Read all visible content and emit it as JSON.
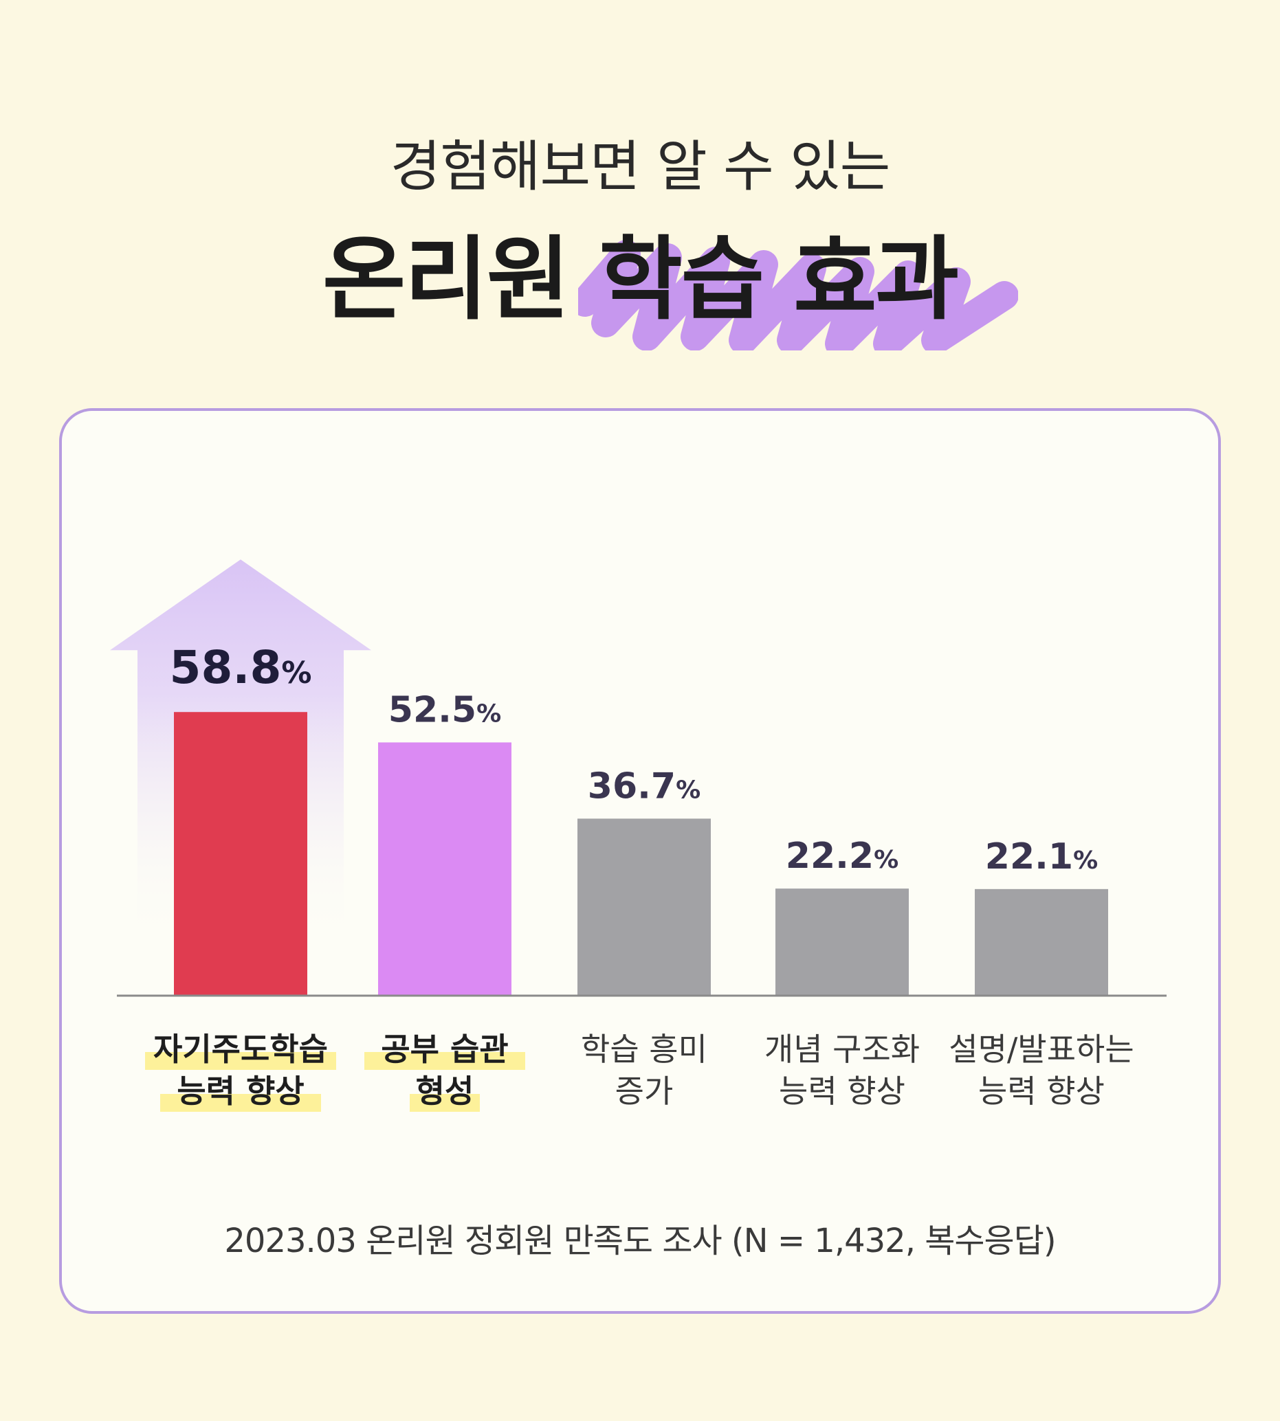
{
  "header": {
    "subtitle": "경험해보면 알 수 있는",
    "title_main": "온리원",
    "title_highlight": "학습 효과"
  },
  "colors": {
    "background": "#fcf8e2",
    "card_border": "#b79ce0",
    "highlight_purple": "#c08cf0",
    "label_highlight_yellow": "#fdf19a",
    "value_text": "#3a3550"
  },
  "chart_data": {
    "type": "bar",
    "categories": [
      [
        "자기주도학습",
        "능력 향상"
      ],
      [
        "공부 습관",
        "형성"
      ],
      [
        "학습 흥미",
        "증가"
      ],
      [
        "개념 구조화",
        "능력 향상"
      ],
      [
        "설명/발표하는",
        "능력 향상"
      ]
    ],
    "values": [
      58.8,
      52.5,
      36.7,
      22.2,
      22.1
    ],
    "value_labels": [
      "58.8",
      "52.5",
      "36.7",
      "22.2",
      "22.1"
    ],
    "unit": "%",
    "bar_colors": [
      "#e03c50",
      "#db8af3",
      "#a2a2a5",
      "#a2a2a5",
      "#a2a2a5"
    ],
    "highlighted_categories": [
      0,
      1
    ],
    "emphasized_index": 0,
    "arrow_color": "#d9c4f5",
    "axis": {
      "ylim": [
        0,
        60
      ],
      "grid": false,
      "legend": "none"
    },
    "footnote": "2023.03 온리원 정회원 만족도 조사 (N = 1,432, 복수응답)"
  }
}
